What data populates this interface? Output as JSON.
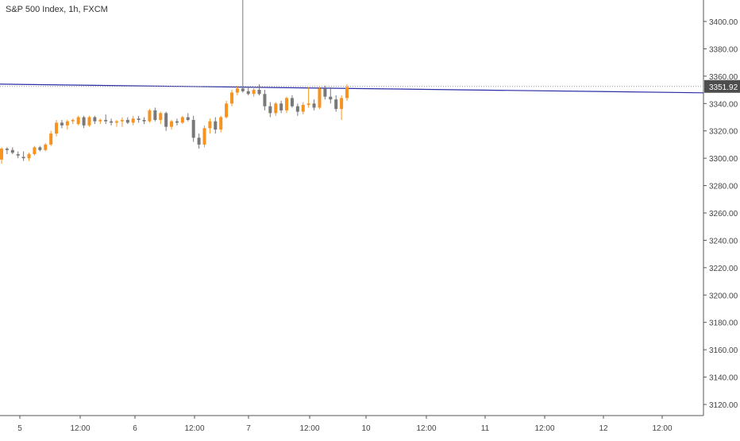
{
  "header": {
    "title": "S&P 500 Index, 1h, FXCM"
  },
  "colors": {
    "up": "#f7931e",
    "down": "#787878",
    "line": "#2b2ea6",
    "grid": "#e6e6e6",
    "axis": "#555555",
    "label_bg": "#4d4d4d"
  },
  "price_label": "3351.92",
  "chart_data": {
    "type": "candlestick",
    "title": "S&P 500 Index, 1h, FXCM",
    "ylim": [
      3110,
      3422
    ],
    "y_ticks": [
      "3400.00",
      "3380.00",
      "3360.00",
      "3340.00",
      "3320.00",
      "3300.00",
      "3280.00",
      "3260.00",
      "3240.00",
      "3220.00",
      "3200.00",
      "3180.00",
      "3160.00",
      "3140.00",
      "3120.00"
    ],
    "x_ticks": [
      "5",
      "12:00",
      "6",
      "12:00",
      "7",
      "12:00",
      "10",
      "12:00",
      "11",
      "12:00",
      "12",
      "12:00"
    ],
    "last_price": 3351.92,
    "grid": false,
    "candles": [
      {
        "o": 3299,
        "h": 3308,
        "l": 3296,
        "c": 3307
      },
      {
        "o": 3307,
        "h": 3308,
        "l": 3303,
        "c": 3306
      },
      {
        "o": 3306,
        "h": 3308,
        "l": 3303,
        "c": 3304
      },
      {
        "o": 3303,
        "h": 3305,
        "l": 3300,
        "c": 3302
      },
      {
        "o": 3301,
        "h": 3305,
        "l": 3298,
        "c": 3300
      },
      {
        "o": 3300,
        "h": 3304,
        "l": 3298,
        "c": 3303
      },
      {
        "o": 3303,
        "h": 3309,
        "l": 3302,
        "c": 3308
      },
      {
        "o": 3308,
        "h": 3309,
        "l": 3305,
        "c": 3306
      },
      {
        "o": 3306,
        "h": 3311,
        "l": 3305,
        "c": 3310
      },
      {
        "o": 3310,
        "h": 3320,
        "l": 3309,
        "c": 3318
      },
      {
        "o": 3318,
        "h": 3328,
        "l": 3316,
        "c": 3326
      },
      {
        "o": 3326,
        "h": 3328,
        "l": 3322,
        "c": 3324
      },
      {
        "o": 3324,
        "h": 3328,
        "l": 3321,
        "c": 3327
      },
      {
        "o": 3327,
        "h": 3329,
        "l": 3325,
        "c": 3328
      },
      {
        "o": 3325,
        "h": 3331,
        "l": 3324,
        "c": 3330
      },
      {
        "o": 3330,
        "h": 3331,
        "l": 3322,
        "c": 3324
      },
      {
        "o": 3324,
        "h": 3331,
        "l": 3323,
        "c": 3330
      },
      {
        "o": 3330,
        "h": 3331,
        "l": 3325,
        "c": 3327
      },
      {
        "o": 3327,
        "h": 3329,
        "l": 3325,
        "c": 3328
      },
      {
        "o": 3328,
        "h": 3332,
        "l": 3325,
        "c": 3327
      },
      {
        "o": 3327,
        "h": 3329,
        "l": 3324,
        "c": 3326
      },
      {
        "o": 3326,
        "h": 3328,
        "l": 3323,
        "c": 3327
      },
      {
        "o": 3327,
        "h": 3330,
        "l": 3323,
        "c": 3328
      },
      {
        "o": 3328,
        "h": 3330,
        "l": 3325,
        "c": 3326
      },
      {
        "o": 3326,
        "h": 3331,
        "l": 3324,
        "c": 3329
      },
      {
        "o": 3329,
        "h": 3331,
        "l": 3326,
        "c": 3328
      },
      {
        "o": 3328,
        "h": 3330,
        "l": 3325,
        "c": 3327
      },
      {
        "o": 3327,
        "h": 3336,
        "l": 3326,
        "c": 3335
      },
      {
        "o": 3335,
        "h": 3337,
        "l": 3327,
        "c": 3328
      },
      {
        "o": 3328,
        "h": 3334,
        "l": 3325,
        "c": 3333
      },
      {
        "o": 3333,
        "h": 3334,
        "l": 3320,
        "c": 3323
      },
      {
        "o": 3323,
        "h": 3328,
        "l": 3321,
        "c": 3327
      },
      {
        "o": 3327,
        "h": 3329,
        "l": 3324,
        "c": 3326
      },
      {
        "o": 3326,
        "h": 3331,
        "l": 3325,
        "c": 3330
      },
      {
        "o": 3330,
        "h": 3333,
        "l": 3327,
        "c": 3328
      },
      {
        "o": 3328,
        "h": 3331,
        "l": 3312,
        "c": 3315
      },
      {
        "o": 3315,
        "h": 3318,
        "l": 3307,
        "c": 3310
      },
      {
        "o": 3310,
        "h": 3324,
        "l": 3308,
        "c": 3322
      },
      {
        "o": 3322,
        "h": 3329,
        "l": 3318,
        "c": 3327
      },
      {
        "o": 3327,
        "h": 3330,
        "l": 3318,
        "c": 3321
      },
      {
        "o": 3321,
        "h": 3331,
        "l": 3319,
        "c": 3330
      },
      {
        "o": 3330,
        "h": 3342,
        "l": 3329,
        "c": 3340
      },
      {
        "o": 3340,
        "h": 3350,
        "l": 3338,
        "c": 3348
      },
      {
        "o": 3348,
        "h": 3353,
        "l": 3346,
        "c": 3351
      },
      {
        "o": 3351,
        "h": 3420,
        "l": 3348,
        "c": 3349
      },
      {
        "o": 3349,
        "h": 3352,
        "l": 3346,
        "c": 3347
      },
      {
        "o": 3347,
        "h": 3352,
        "l": 3345,
        "c": 3350
      },
      {
        "o": 3350,
        "h": 3354,
        "l": 3346,
        "c": 3347
      },
      {
        "o": 3347,
        "h": 3350,
        "l": 3335,
        "c": 3338
      },
      {
        "o": 3338,
        "h": 3341,
        "l": 3330,
        "c": 3333
      },
      {
        "o": 3333,
        "h": 3341,
        "l": 3331,
        "c": 3340
      },
      {
        "o": 3340,
        "h": 3342,
        "l": 3333,
        "c": 3335
      },
      {
        "o": 3335,
        "h": 3345,
        "l": 3333,
        "c": 3344
      },
      {
        "o": 3344,
        "h": 3346,
        "l": 3337,
        "c": 3338
      },
      {
        "o": 3338,
        "h": 3340,
        "l": 3331,
        "c": 3334
      },
      {
        "o": 3334,
        "h": 3341,
        "l": 3332,
        "c": 3339
      },
      {
        "o": 3339,
        "h": 3352,
        "l": 3337,
        "c": 3340
      },
      {
        "o": 3340,
        "h": 3343,
        "l": 3335,
        "c": 3337
      },
      {
        "o": 3337,
        "h": 3352,
        "l": 3336,
        "c": 3351
      },
      {
        "o": 3351,
        "h": 3353,
        "l": 3343,
        "c": 3345
      },
      {
        "o": 3345,
        "h": 3352,
        "l": 3340,
        "c": 3343
      },
      {
        "o": 3343,
        "h": 3346,
        "l": 3334,
        "c": 3336
      },
      {
        "o": 3336,
        "h": 3346,
        "l": 3328,
        "c": 3344
      },
      {
        "o": 3344,
        "h": 3354,
        "l": 3342,
        "c": 3352
      }
    ],
    "trendline": {
      "from": 3353,
      "to": 3349
    }
  }
}
